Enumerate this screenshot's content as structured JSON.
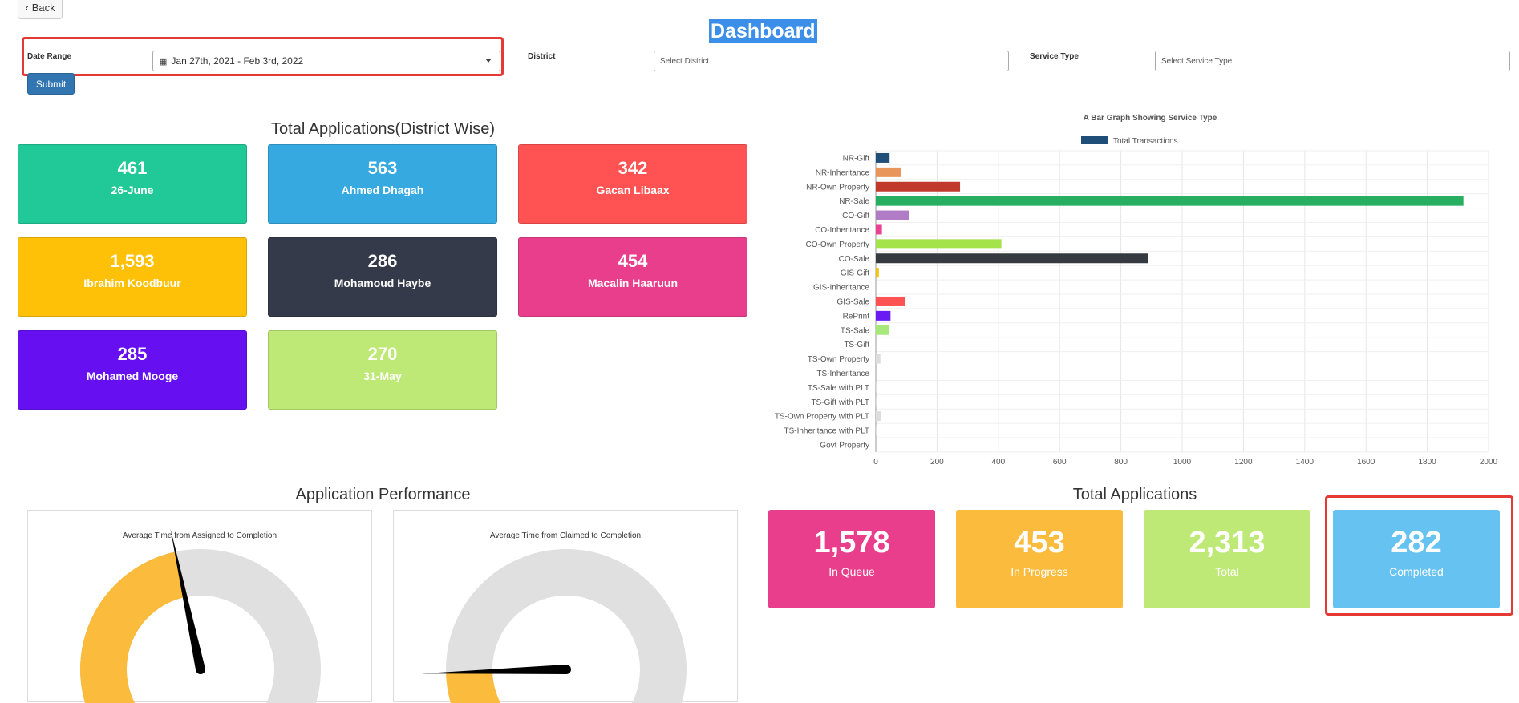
{
  "back_label": "Back",
  "title": "Dashboard",
  "filters": {
    "date_range_label": "Date Range",
    "date_range_value": "Jan 27th, 2021 - Feb 3rd, 2022",
    "district_label": "District",
    "district_placeholder": "Select District",
    "service_type_label": "Service Type",
    "service_type_placeholder": "Select Service Type",
    "submit_label": "Submit"
  },
  "district_section": {
    "title": "Total Applications(District Wise)",
    "cards": [
      {
        "value": "461",
        "label": "26-June",
        "color": "#20c997"
      },
      {
        "value": "563",
        "label": "Ahmed Dhagah",
        "color": "#36a9e1"
      },
      {
        "value": "342",
        "label": "Gacan Libaax",
        "color": "#ff5252"
      },
      {
        "value": "1,593",
        "label": "Ibrahim Koodbuur",
        "color": "#ffc107"
      },
      {
        "value": "286",
        "label": "Mohamoud Haybe",
        "color": "#343a4a"
      },
      {
        "value": "454",
        "label": "Macalin Haaruun",
        "color": "#e83e8c"
      },
      {
        "value": "285",
        "label": "Mohamed Mooge",
        "color": "#6610f2"
      },
      {
        "value": "270",
        "label": "31-May",
        "color": "#bfe977"
      }
    ]
  },
  "chart_data": {
    "type": "bar",
    "orientation": "horizontal",
    "title": "A Bar Graph Showing Service Type",
    "legend_position": "top",
    "grid": true,
    "xlim": [
      0,
      2000
    ],
    "x_ticks": [
      "0",
      "200",
      "400",
      "600",
      "800",
      "1000",
      "1200",
      "1400",
      "1600",
      "1800",
      "2000"
    ],
    "series": [
      {
        "name": "Total Transactions",
        "legend_color": "#1f4e79",
        "categories": [
          "NR-Gift",
          "NR-Inheritance",
          "NR-Own Property",
          "NR-Sale",
          "CO-Gift",
          "CO-Inheritance",
          "CO-Own Property",
          "CO-Sale",
          "GIS-Gift",
          "GIS-Inheritance",
          "GIS-Sale",
          "RePrint",
          "TS-Sale",
          "TS-Gift",
          "TS-Own Property",
          "TS-Inheritance",
          "TS-Sale with PLT",
          "TS-Gift with PLT",
          "TS-Own Property with PLT",
          "TS-Inheritance with PLT",
          "Govt Property"
        ],
        "values": [
          45,
          82,
          275,
          1918,
          108,
          20,
          410,
          888,
          10,
          0,
          95,
          48,
          42,
          0,
          15,
          0,
          5,
          4,
          18,
          2,
          0
        ],
        "colors": [
          "#1f4e79",
          "#e8965a",
          "#c0392b",
          "#27ae60",
          "#b07cc6",
          "#e84393",
          "#a4e34a",
          "#343a40",
          "#f1c40f",
          "#95a5a6",
          "#ff5252",
          "#6a1bf2",
          "#a7e87a",
          "#cccccc",
          "#dddddd",
          "#dddddd",
          "#dddddd",
          "#dddddd",
          "#dddddd",
          "#dddddd",
          "#dddddd"
        ]
      }
    ]
  },
  "performance": {
    "title": "Application Performance",
    "gauges": [
      {
        "title": "Average Time from Assigned to Completion",
        "fill_fraction": 0.45
      },
      {
        "title": "Average Time from Claimed to Completion",
        "fill_fraction": 0.12
      }
    ]
  },
  "totals": {
    "title": "Total Applications",
    "cards": [
      {
        "value": "1,578",
        "label": "In Queue",
        "color": "#e83e8c"
      },
      {
        "value": "453",
        "label": "In Progress",
        "color": "#fbbb3c"
      },
      {
        "value": "2,313",
        "label": "Total",
        "color": "#bfe977"
      },
      {
        "value": "282",
        "label": "Completed",
        "color": "#66c2f0"
      }
    ]
  }
}
